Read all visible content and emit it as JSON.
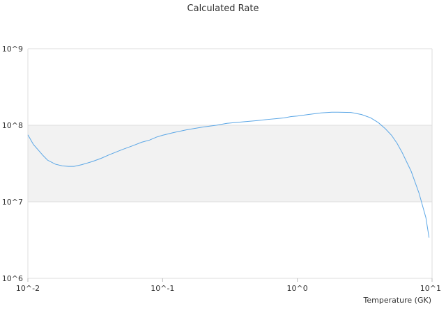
{
  "chart_data": {
    "type": "line",
    "title": "Calculated Rate",
    "xlabel": "Temperature (GK)",
    "ylabel": "",
    "x_scale": "log",
    "y_scale": "log",
    "xlim": [
      0.01,
      10
    ],
    "ylim": [
      1000000,
      1000000000
    ],
    "x_ticks": [
      {
        "value": 0.01,
        "label": "10^-2"
      },
      {
        "value": 0.1,
        "label": "10^-1"
      },
      {
        "value": 1,
        "label": "10^0"
      },
      {
        "value": 10,
        "label": "10^1"
      }
    ],
    "y_ticks": [
      {
        "value": 1000000,
        "label": "10^6"
      },
      {
        "value": 10000000,
        "label": "10^7"
      },
      {
        "value": 100000000,
        "label": "10^8"
      },
      {
        "value": 1000000000,
        "label": "10^9"
      }
    ],
    "shaded_band": [
      10000000,
      100000000
    ],
    "band_color": "#f2f2f2",
    "line_color": "#5aa6e6",
    "grid_color": "#dddddd",
    "grid": true,
    "legend": "none",
    "series": [
      {
        "x": [
          0.01,
          0.011,
          0.012,
          0.013,
          0.014,
          0.016,
          0.018,
          0.02,
          0.022,
          0.025,
          0.03,
          0.035,
          0.04,
          0.05,
          0.06,
          0.07,
          0.08,
          0.09,
          0.1,
          0.12,
          0.15,
          0.2,
          0.25,
          0.3,
          0.4,
          0.5,
          0.6,
          0.7,
          0.8,
          0.9,
          1.0,
          1.2,
          1.5,
          1.8,
          2.0,
          2.5,
          3.0,
          3.5,
          4.0,
          4.5,
          5.0,
          5.5,
          6.0,
          7.0,
          8.0,
          9.0,
          9.5
        ],
        "y": [
          75000000,
          56000000,
          47000000,
          40000000,
          35000000,
          31000000,
          29500000,
          29000000,
          29000000,
          30500000,
          33500000,
          37000000,
          41000000,
          48000000,
          54000000,
          60000000,
          64000000,
          70000000,
          74000000,
          80000000,
          87000000,
          95000000,
          100000000,
          106000000,
          111000000,
          115000000,
          119000000,
          122000000,
          125000000,
          130000000,
          132000000,
          138000000,
          145000000,
          148000000,
          148000000,
          147000000,
          138000000,
          125000000,
          108000000,
          90000000,
          74000000,
          58000000,
          44000000,
          25000000,
          13000000,
          6200000,
          3400000
        ]
      }
    ]
  }
}
